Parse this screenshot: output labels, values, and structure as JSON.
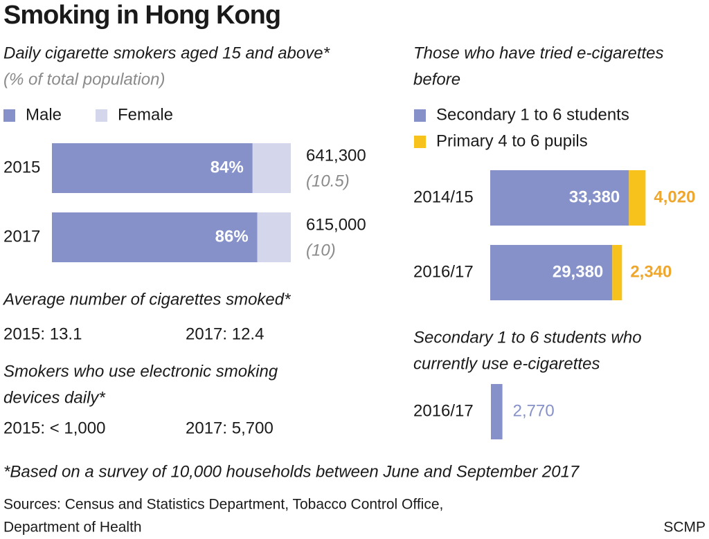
{
  "title": "Smoking in Hong Kong",
  "chart_data": [
    {
      "type": "stacked-bar-h",
      "title": [
        "Daily cigarette smokers aged 15 and above*"
      ],
      "subtitle": "(% of total population)",
      "categories": [
        "2015",
        "2017"
      ],
      "series": [
        {
          "name": "Male",
          "color": "#8691c9",
          "values": [
            84,
            86
          ],
          "value_labels": [
            "84%",
            "86%"
          ]
        },
        {
          "name": "Female",
          "color": "#d4d6ec",
          "values": [
            16,
            14
          ]
        }
      ],
      "totals": {
        "values": [
          641300,
          615000
        ],
        "value_labels": [
          "641,300",
          "615,000"
        ]
      },
      "shares": {
        "values": [
          10.5,
          10
        ],
        "value_labels": [
          "(10.5)",
          "(10)"
        ]
      }
    },
    {
      "type": "stacked-bar-h",
      "title": [
        "Those who have tried e-cigarettes",
        "before"
      ],
      "categories": [
        "2014/15",
        "2016/17"
      ],
      "series": [
        {
          "name": "Secondary 1 to 6 students",
          "color": "#8691c9",
          "values": [
            33380,
            29380
          ],
          "value_labels": [
            "33,380",
            "29,380"
          ]
        },
        {
          "name": "Primary 4 to 6 pupils",
          "color": "#f8c21c",
          "values": [
            4020,
            2340
          ],
          "value_labels": [
            "4,020",
            "2,340"
          ]
        }
      ]
    },
    {
      "type": "bar-h",
      "title": [
        "Secondary 1 to 6 students who",
        "currently use e-cigarettes"
      ],
      "categories": [
        "2016/17"
      ],
      "values": [
        2770
      ],
      "value_labels": [
        "2,770"
      ],
      "color": "#8691c9"
    }
  ],
  "stats": [
    {
      "title": [
        "Average number of cigarettes smoked*"
      ],
      "items": [
        "2015: 13.1",
        "2017: 12.4"
      ]
    },
    {
      "title": [
        "Smokers who use electronic smoking",
        "devices daily*"
      ],
      "items": [
        "2015: < 1,000",
        "2017: 5,700"
      ]
    }
  ],
  "footnote": "*Based on a survey of 10,000 households between June and September 2017",
  "sources": [
    "Sources: Census and Statistics Department, Tobacco Control Office,",
    "Department of Health"
  ],
  "credit": "SCMP"
}
